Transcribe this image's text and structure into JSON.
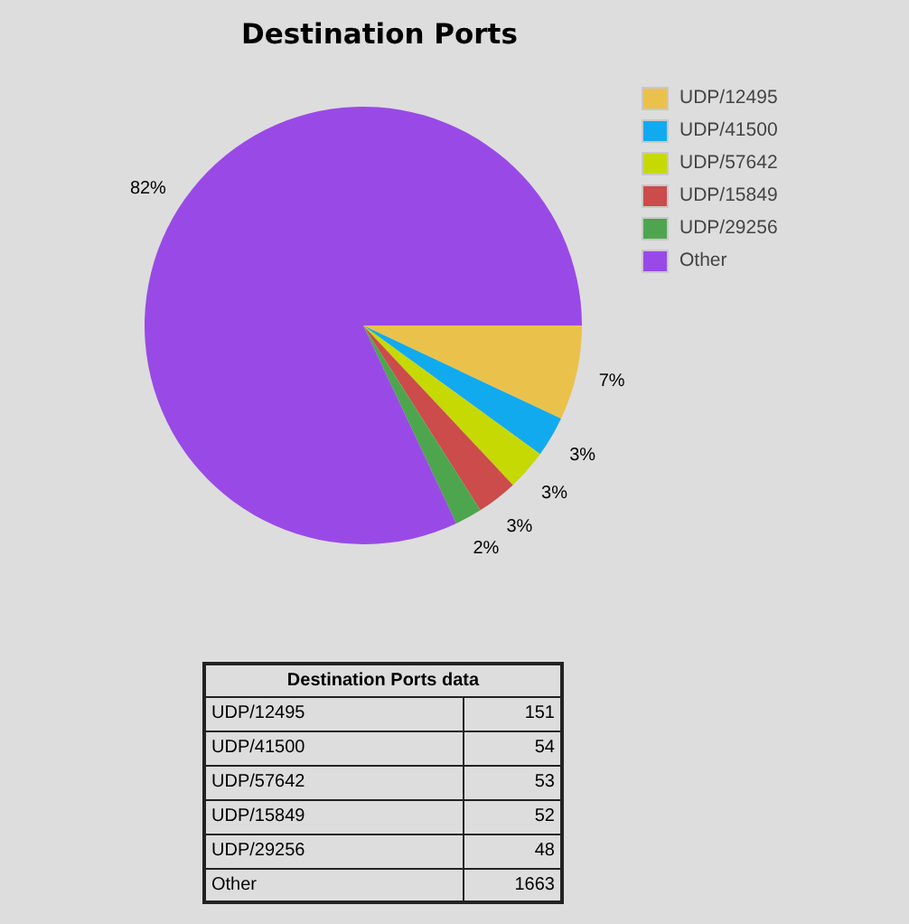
{
  "chart_data": [
    {
      "type": "pie",
      "title": "Destination Ports",
      "categories": [
        "UDP/12495",
        "UDP/41500",
        "UDP/57642",
        "UDP/15849",
        "UDP/29256",
        "Other"
      ],
      "values": [
        7,
        3,
        3,
        3,
        2,
        82
      ],
      "colors": [
        "#eac24b",
        "#12aaef",
        "#c6d902",
        "#cc4b4b",
        "#4da64d",
        "#994ae6"
      ],
      "value_labels": [
        "7%",
        "3%",
        "3%",
        "3%",
        "2%",
        "82%"
      ],
      "legend": "top right"
    },
    {
      "type": "other",
      "title": "Destination Ports data",
      "categories": [
        "UDP/12495",
        "UDP/41500",
        "UDP/57642",
        "UDP/15849",
        "UDP/29256",
        "Other"
      ],
      "values": [
        151,
        54,
        53,
        52,
        48,
        1663
      ],
      "data_labels": true
    }
  ]
}
